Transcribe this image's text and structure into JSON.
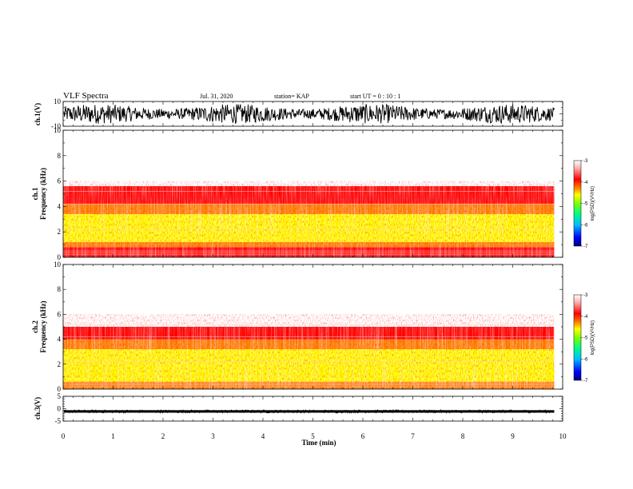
{
  "header": {
    "title": "VLF Spectra",
    "date": "Jul. 31, 2020",
    "station": "station= KAP",
    "start": "start  UT =   0 : 10 : 1"
  },
  "chart_data": [
    {
      "type": "line",
      "panel": "ch1-waveform",
      "ylabel": "ch.1(V)",
      "ylim": [
        -10,
        10
      ],
      "ytick_labels": [
        "10",
        "-10"
      ],
      "x_range_min": [
        0,
        9.83
      ],
      "description_values": "dense oscillating waveform with amplitude mostly within ±8 V"
    },
    {
      "type": "heatmap",
      "panel": "ch1-spectrogram",
      "ylabel": "ch.1\nFrequency (kHz)",
      "ylim": [
        0,
        10
      ],
      "ytick_labels": [
        "0",
        "2",
        "4",
        "6",
        "8",
        "10"
      ],
      "xlim": [
        0,
        10
      ],
      "data_x_range": [
        0,
        9.83
      ],
      "bands": [
        {
          "f_from": 0,
          "f_to": 0.8,
          "logPSD": -4.0
        },
        {
          "f_from": 0.8,
          "f_to": 1.2,
          "logPSD": -4.3
        },
        {
          "f_from": 1.2,
          "f_to": 3.4,
          "logPSD": -4.8
        },
        {
          "f_from": 3.4,
          "f_to": 4.2,
          "logPSD": -4.3
        },
        {
          "f_from": 4.2,
          "f_to": 5.6,
          "logPSD": -3.9
        },
        {
          "f_from": 5.6,
          "f_to": 10,
          "logPSD": -3.2
        }
      ],
      "colorbar": {
        "label": "log(PSD)(V²/Hz)",
        "range": [
          -7,
          -3
        ],
        "tick_labels": [
          "-3",
          "-4",
          "-5",
          "-6",
          "-7"
        ]
      }
    },
    {
      "type": "heatmap",
      "panel": "ch2-spectrogram",
      "ylabel": "ch.2\nFrequency (kHz)",
      "ylim": [
        0,
        10
      ],
      "ytick_labels": [
        "0",
        "2",
        "4",
        "6",
        "8",
        "10"
      ],
      "xlim": [
        0,
        10
      ],
      "data_x_range": [
        0,
        9.83
      ],
      "bands": [
        {
          "f_from": 0,
          "f_to": 0.6,
          "logPSD": -4.2
        },
        {
          "f_from": 0.6,
          "f_to": 3.2,
          "logPSD": -5.0
        },
        {
          "f_from": 3.2,
          "f_to": 4.0,
          "logPSD": -4.3
        },
        {
          "f_from": 4.0,
          "f_to": 5.0,
          "logPSD": -3.9
        },
        {
          "f_from": 5.0,
          "f_to": 10,
          "logPSD": -3.2
        }
      ],
      "colorbar": {
        "label": "log(PSD)(V²/Hz)",
        "range": [
          -7,
          -3
        ],
        "tick_labels": [
          "-3",
          "-4",
          "-5",
          "-6",
          "-7"
        ]
      }
    },
    {
      "type": "line",
      "panel": "ch3-waveform",
      "ylabel": "ch.3(V)",
      "ylim": [
        -5,
        5
      ],
      "ytick_labels": [
        "5",
        "0",
        "-5"
      ],
      "description_values": "near-constant signal at about -1 V with small jitter"
    }
  ],
  "xaxis": {
    "label": "Time (min)",
    "xlim": [
      0,
      10
    ],
    "tick_labels": [
      "0",
      "1",
      "2",
      "3",
      "4",
      "5",
      "6",
      "7",
      "8",
      "9",
      "10"
    ]
  },
  "colors": {
    "colormap": [
      "#000080",
      "#0000ff",
      "#00c0ff",
      "#00ff80",
      "#80ff00",
      "#ffff00",
      "#ff8000",
      "#ff0000",
      "#ffc0c0",
      "#ffffff"
    ]
  }
}
